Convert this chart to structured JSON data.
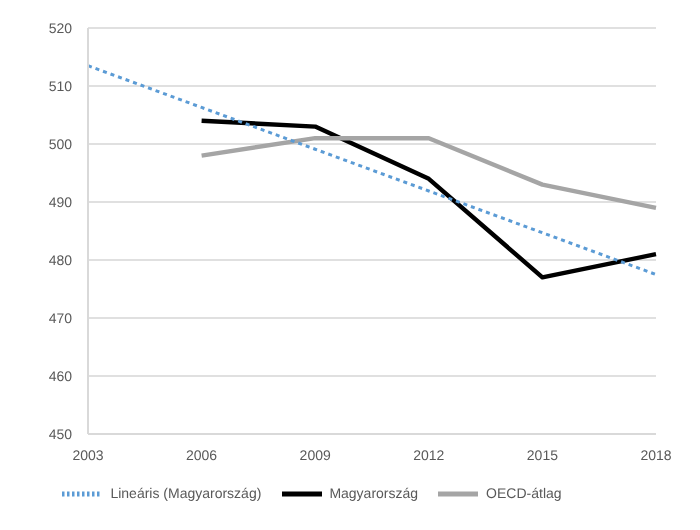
{
  "chart_data": {
    "type": "line",
    "categories": [
      "2003",
      "2006",
      "2009",
      "2012",
      "2015",
      "2018"
    ],
    "series": [
      {
        "name": "Magyarország",
        "color": "#000000",
        "values": [
          null,
          504,
          503,
          494,
          477,
          481
        ]
      },
      {
        "name": "OECD-átlag",
        "color": "#a5a5a5",
        "values": [
          null,
          498,
          501,
          501,
          493,
          489
        ]
      },
      {
        "name": "Lineáris (Magyarország)",
        "color": "#5b9bd5",
        "line_style": "dotted",
        "values": [
          513.5,
          506.3,
          499.1,
          491.9,
          484.7,
          477.5
        ]
      }
    ],
    "ylim": [
      450,
      520
    ],
    "yticks": [
      450,
      460,
      470,
      480,
      490,
      500,
      510,
      520
    ],
    "grid": "y",
    "legend": "bottom",
    "marker": "none"
  }
}
